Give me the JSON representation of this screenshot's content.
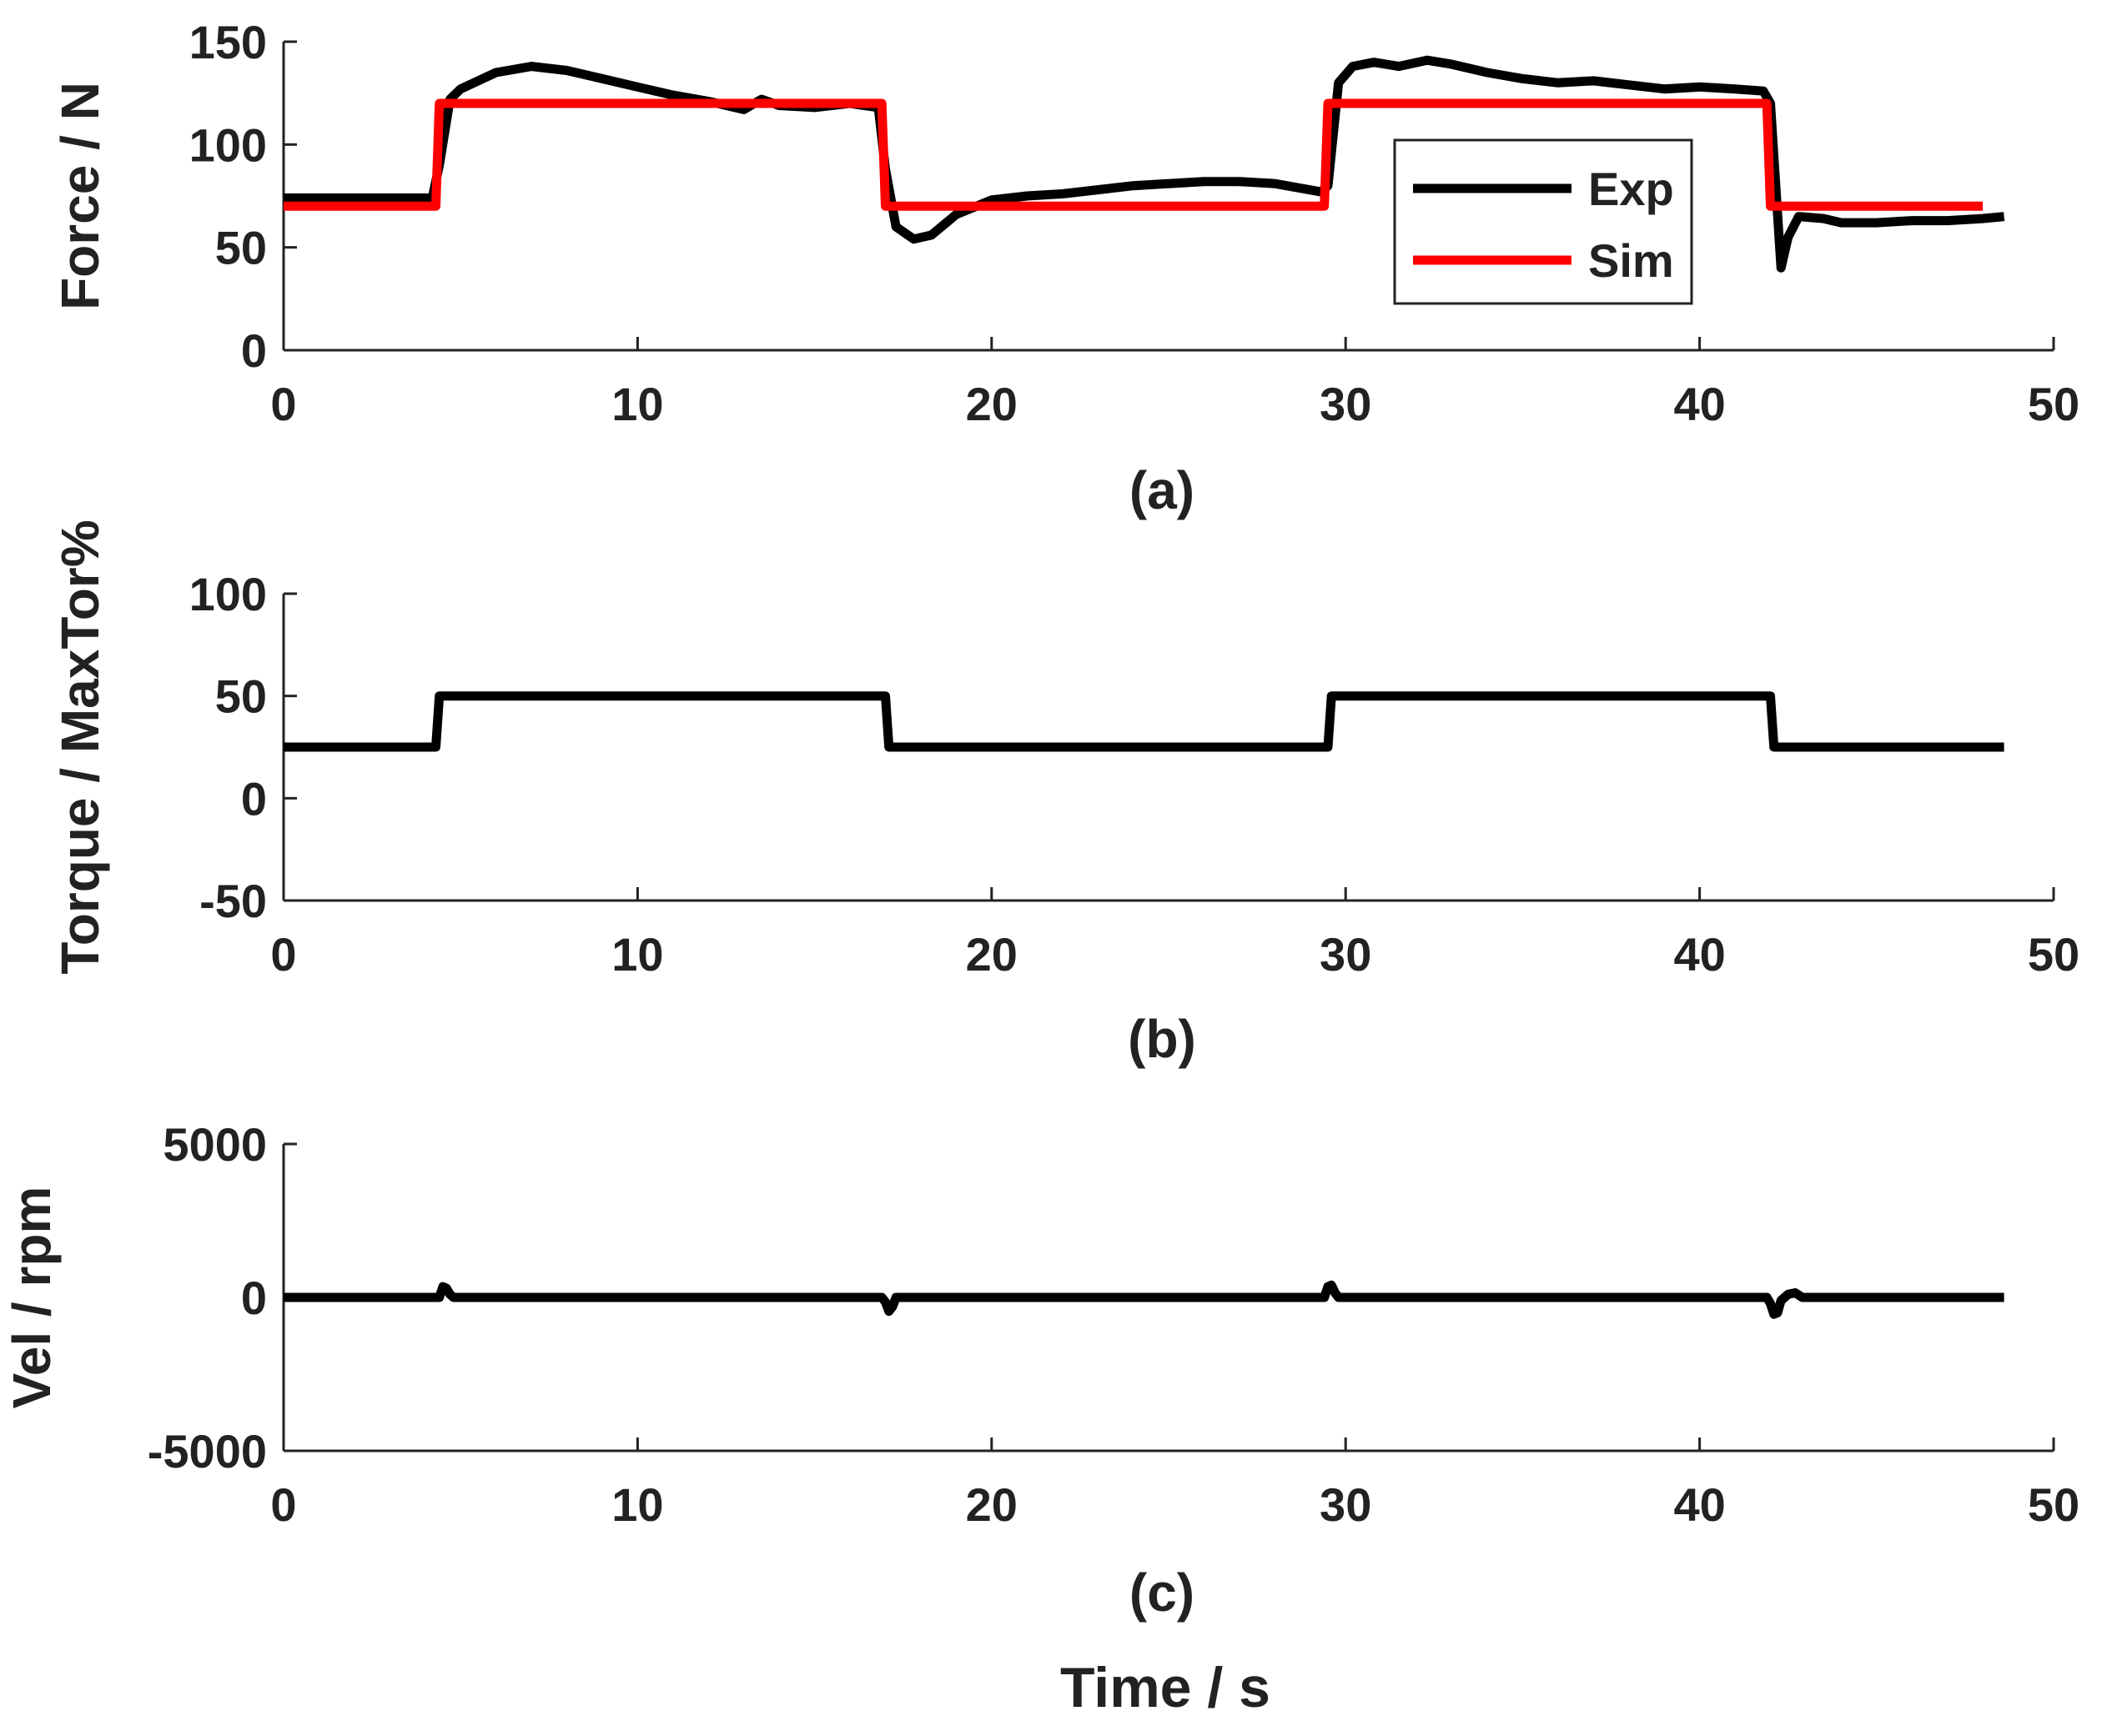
{
  "figure": {
    "xlabel": "Time / s"
  },
  "chart_data": [
    {
      "type": "line",
      "caption": "(a)",
      "ylabel": "Force / N",
      "xlabel": "",
      "xlim": [
        0,
        50
      ],
      "ylim": [
        0,
        150
      ],
      "xticks": [
        0,
        10,
        20,
        30,
        40,
        50
      ],
      "yticks": [
        0,
        50,
        100,
        150
      ],
      "grid": false,
      "legend": {
        "position": "top-right",
        "entries": [
          "Exp",
          "Sim"
        ]
      },
      "series": [
        {
          "name": "Exp",
          "color": "#000000",
          "x": [
            0,
            1,
            2,
            3,
            4.2,
            4.4,
            4.7,
            5.0,
            6.0,
            7.0,
            8.0,
            9.0,
            10.0,
            11.0,
            12.0,
            13.0,
            13.5,
            14.0,
            15.0,
            16.0,
            16.8,
            17.0,
            17.3,
            17.8,
            18.3,
            19.0,
            20.0,
            21.0,
            22.0,
            23.0,
            24.0,
            25.0,
            26.0,
            27.0,
            28.0,
            29.3,
            29.5,
            29.8,
            30.2,
            30.8,
            31.5,
            32.3,
            33.0,
            34.0,
            35.0,
            36.0,
            37.0,
            38.0,
            39.0,
            40.0,
            41.0,
            41.8,
            42.0,
            42.3,
            42.5,
            42.8,
            43.5,
            44.0,
            45.0,
            46.0,
            47.0,
            48.0,
            48.6
          ],
          "y": [
            74,
            74,
            74,
            74,
            74,
            90,
            122,
            127,
            135,
            138,
            136,
            132,
            128,
            124,
            121,
            117,
            122,
            119,
            118,
            120,
            118,
            88,
            60,
            54,
            56,
            66,
            73,
            75,
            76,
            78,
            80,
            81,
            82,
            82,
            81,
            77,
            80,
            130,
            138,
            140,
            138,
            141,
            139,
            135,
            132,
            130,
            131,
            129,
            127,
            128,
            127,
            126,
            120,
            40,
            55,
            65,
            64,
            62,
            62,
            63,
            63,
            64,
            65
          ]
        },
        {
          "name": "Sim",
          "color": "#ff0000",
          "x": [
            0,
            4.3,
            4.4,
            16.9,
            17.0,
            29.4,
            29.5,
            41.9,
            42.0,
            48.0
          ],
          "y": [
            70,
            70,
            120,
            120,
            70,
            70,
            120,
            120,
            70,
            70
          ]
        }
      ]
    },
    {
      "type": "line",
      "caption": "(b)",
      "ylabel": "Torque / MaxTor%",
      "xlabel": "",
      "xlim": [
        0,
        50
      ],
      "ylim": [
        -50,
        100
      ],
      "xticks": [
        0,
        10,
        20,
        30,
        40,
        50
      ],
      "yticks": [
        -50,
        0,
        50,
        100
      ],
      "grid": false,
      "series": [
        {
          "color": "#000000",
          "x": [
            0,
            4.3,
            4.4,
            17.0,
            17.1,
            29.5,
            29.6,
            42.0,
            42.1,
            48.6
          ],
          "y": [
            25,
            25,
            50,
            50,
            25,
            25,
            50,
            50,
            25,
            25
          ]
        }
      ]
    },
    {
      "type": "line",
      "caption": "(c)",
      "ylabel": "Vel / rpm",
      "xlabel": "Time / s",
      "xlim": [
        0,
        50
      ],
      "ylim": [
        -5000,
        5000
      ],
      "xticks": [
        0,
        10,
        20,
        30,
        40,
        50
      ],
      "yticks": [
        -5000,
        0,
        5000
      ],
      "grid": false,
      "series": [
        {
          "color": "#000000",
          "x": [
            0,
            4.4,
            4.5,
            4.6,
            4.7,
            4.8,
            16.9,
            17.0,
            17.1,
            17.2,
            17.3,
            29.4,
            29.5,
            29.6,
            29.7,
            29.8,
            41.9,
            42.0,
            42.1,
            42.2,
            42.3,
            42.5,
            42.7,
            42.9,
            48.6
          ],
          "y": [
            0,
            0,
            350,
            300,
            100,
            0,
            0,
            -150,
            -450,
            -300,
            0,
            0,
            350,
            400,
            150,
            0,
            0,
            -200,
            -550,
            -500,
            -100,
            100,
            150,
            0,
            0
          ]
        }
      ]
    }
  ]
}
